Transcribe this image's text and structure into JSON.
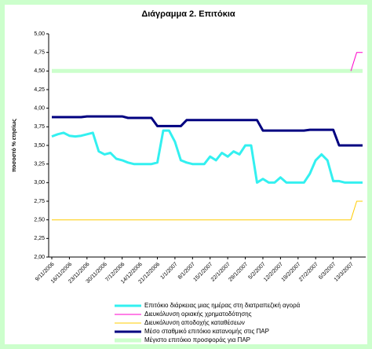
{
  "chart_data": {
    "type": "line",
    "title": "Διάγραμμα 2. Επιτόκια",
    "y_label": "ποσοστό % ετησίως",
    "categories": [
      "9/11/2006",
      null,
      null,
      "16/11/2006",
      null,
      null,
      "23/11/2006",
      null,
      null,
      "30/11/2006",
      null,
      null,
      "7/12/2006",
      null,
      null,
      "14/12/2006",
      null,
      null,
      "21/12/2006",
      null,
      null,
      "1/1/2007",
      null,
      null,
      "8/1/2007",
      null,
      null,
      "15/1/2007",
      null,
      null,
      "22/1/2007",
      null,
      null,
      "29/1/2007",
      null,
      null,
      "5/2/2007",
      null,
      null,
      "12/2/2007",
      null,
      null,
      "19/2/2007",
      null,
      null,
      "27/2/2007",
      null,
      null,
      "6/3/2007",
      null,
      null,
      "13/3/2007",
      null,
      null
    ],
    "ylim": [
      2.0,
      5.0
    ],
    "yticks": [
      {
        "value": 2.0,
        "label": "2,00"
      },
      {
        "value": 2.25,
        "label": "2,25"
      },
      {
        "value": 2.5,
        "label": "2,50"
      },
      {
        "value": 2.75,
        "label": "2,75"
      },
      {
        "value": 3.0,
        "label": "3,00"
      },
      {
        "value": 3.25,
        "label": "3,25"
      },
      {
        "value": 3.5,
        "label": "3,50"
      },
      {
        "value": 3.75,
        "label": "3,75"
      },
      {
        "value": 4.0,
        "label": "4,00"
      },
      {
        "value": 4.25,
        "label": "4,25"
      },
      {
        "value": 4.5,
        "label": "4,50"
      },
      {
        "value": 4.75,
        "label": "4,75"
      },
      {
        "value": 5.0,
        "label": "5,00"
      }
    ],
    "grid": false,
    "legend": "bottom",
    "series": [
      {
        "name": "Επιτόκιο διάρκειας μιας ημέρας στη διατραπεζική αγορά",
        "color": "#33f0f0",
        "width": 3,
        "values": [
          3.62,
          3.65,
          3.67,
          3.63,
          3.62,
          3.63,
          3.65,
          3.67,
          3.42,
          3.38,
          3.4,
          3.32,
          3.3,
          3.27,
          3.25,
          3.25,
          3.25,
          3.25,
          3.27,
          3.7,
          3.7,
          3.55,
          3.3,
          3.27,
          3.25,
          3.25,
          3.25,
          3.35,
          3.3,
          3.4,
          3.35,
          3.42,
          3.38,
          3.5,
          3.5,
          3.0,
          3.05,
          3.0,
          3.0,
          3.07,
          3.0,
          3.0,
          3.0,
          3.0,
          3.12,
          3.3,
          3.38,
          3.3,
          3.02,
          3.02,
          3.0,
          3.0,
          3.0,
          3.0
        ]
      },
      {
        "name": "Διευκόλυνση οριακής χρηματοδότησης",
        "color": "#ff00cc",
        "width": 1,
        "values": [
          null,
          null,
          null,
          null,
          null,
          null,
          null,
          null,
          null,
          null,
          null,
          null,
          null,
          null,
          null,
          null,
          null,
          null,
          null,
          null,
          null,
          null,
          null,
          null,
          null,
          null,
          null,
          null,
          null,
          null,
          null,
          null,
          null,
          null,
          null,
          null,
          null,
          null,
          null,
          null,
          null,
          null,
          null,
          null,
          null,
          null,
          null,
          null,
          null,
          null,
          null,
          4.5,
          4.75,
          4.75
        ]
      },
      {
        "name": "Διευκόλυνση αποδοχής καταθέσεων",
        "color": "#ffcc00",
        "width": 1,
        "values": [
          2.5,
          2.5,
          2.5,
          2.5,
          2.5,
          2.5,
          2.5,
          2.5,
          2.5,
          2.5,
          2.5,
          2.5,
          2.5,
          2.5,
          2.5,
          2.5,
          2.5,
          2.5,
          2.5,
          2.5,
          2.5,
          2.5,
          2.5,
          2.5,
          2.5,
          2.5,
          2.5,
          2.5,
          2.5,
          2.5,
          2.5,
          2.5,
          2.5,
          2.5,
          2.5,
          2.5,
          2.5,
          2.5,
          2.5,
          2.5,
          2.5,
          2.5,
          2.5,
          2.5,
          2.5,
          2.5,
          2.5,
          2.5,
          2.5,
          2.5,
          2.5,
          2.5,
          2.75,
          2.75
        ]
      },
      {
        "name": "Μέσο σταθμικό επιτόκιο κατανομής στις ΠΑΡ",
        "color": "#000080",
        "width": 3,
        "values": [
          3.88,
          3.88,
          3.88,
          3.88,
          3.88,
          3.88,
          3.89,
          3.89,
          3.89,
          3.89,
          3.89,
          3.89,
          3.89,
          3.87,
          3.87,
          3.87,
          3.87,
          3.87,
          3.76,
          3.76,
          3.76,
          3.76,
          3.76,
          3.84,
          3.84,
          3.84,
          3.84,
          3.84,
          3.84,
          3.84,
          3.84,
          3.84,
          3.84,
          3.84,
          3.84,
          3.84,
          3.7,
          3.7,
          3.7,
          3.7,
          3.7,
          3.7,
          3.7,
          3.7,
          3.71,
          3.71,
          3.71,
          3.71,
          3.71,
          3.5,
          3.5,
          3.5,
          3.5,
          3.5
        ]
      },
      {
        "name": "Μέγιστο επιτόκιο προσφοράς για ΠΑΡ",
        "color": "#ccffcc",
        "width": 5,
        "values": [
          4.5,
          4.5,
          4.5,
          4.5,
          4.5,
          4.5,
          4.5,
          4.5,
          4.5,
          4.5,
          4.5,
          4.5,
          4.5,
          4.5,
          4.5,
          4.5,
          4.5,
          4.5,
          4.5,
          4.5,
          4.5,
          4.5,
          4.5,
          4.5,
          4.5,
          4.5,
          4.5,
          4.5,
          4.5,
          4.5,
          4.5,
          4.5,
          4.5,
          4.5,
          4.5,
          4.5,
          4.5,
          4.5,
          4.5,
          4.5,
          4.5,
          4.5,
          4.5,
          4.5,
          4.5,
          4.5,
          4.5,
          4.5,
          4.5,
          4.5,
          4.5,
          4.5,
          4.5,
          4.5
        ]
      }
    ]
  }
}
